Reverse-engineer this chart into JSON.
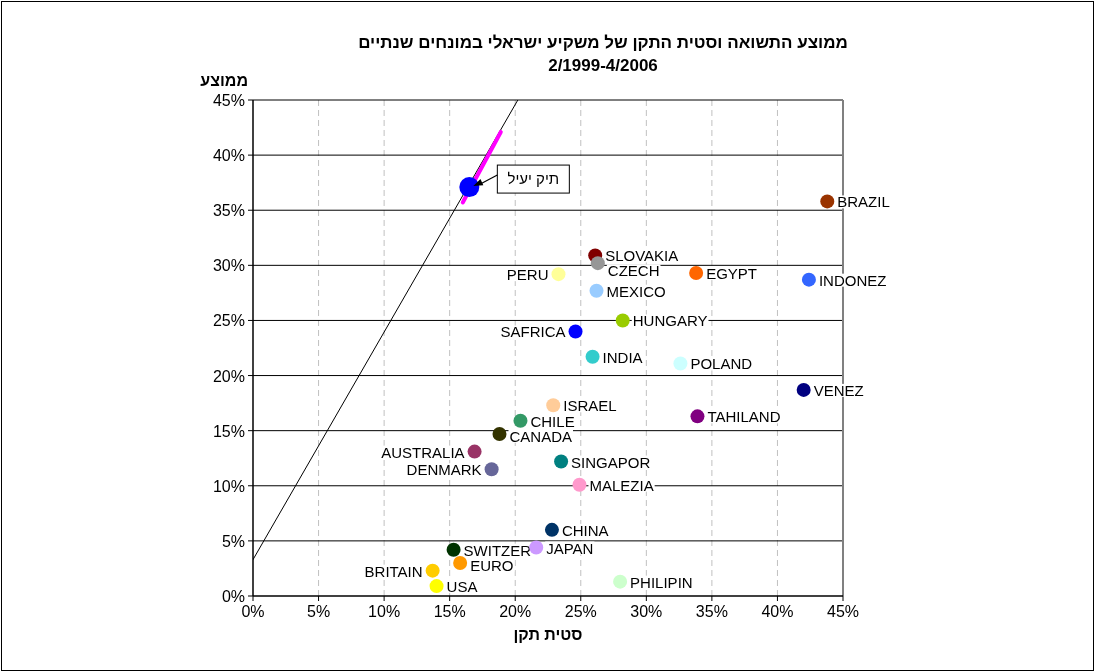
{
  "chart_data": {
    "type": "scatter",
    "title": "ממוצע התשואה וסטית התקן של משקיע ישראלי במונחים שנתיים",
    "subtitle": "2/1999-4/2006",
    "xlabel": "סטית תקן",
    "ylabel": "ממוצע",
    "marker": "circle",
    "grid": true,
    "xlim": [
      0,
      45
    ],
    "ylim": [
      0,
      45
    ],
    "xticks": [
      {
        "value": 0,
        "label": "0%"
      },
      {
        "value": 5,
        "label": "5%"
      },
      {
        "value": 10,
        "label": "10%"
      },
      {
        "value": 15,
        "label": "15%"
      },
      {
        "value": 20,
        "label": "20%"
      },
      {
        "value": 25,
        "label": "25%"
      },
      {
        "value": 30,
        "label": "30%"
      },
      {
        "value": 35,
        "label": "35%"
      },
      {
        "value": 40,
        "label": "40%"
      },
      {
        "value": 45,
        "label": "45%"
      }
    ],
    "yticks": [
      {
        "value": 0,
        "label": "0%"
      },
      {
        "value": 5,
        "label": "5%"
      },
      {
        "value": 10,
        "label": "10%"
      },
      {
        "value": 15,
        "label": "15%"
      },
      {
        "value": 20,
        "label": "20%"
      },
      {
        "value": 25,
        "label": "25%"
      },
      {
        "value": 30,
        "label": "30%"
      },
      {
        "value": 35,
        "label": "35%"
      },
      {
        "value": 40,
        "label": "40%"
      },
      {
        "value": 45,
        "label": "45%"
      }
    ],
    "annotations": [
      {
        "text": "תיק יעיל",
        "x": 16.5,
        "y": 37.1
      }
    ],
    "series": [
      {
        "type": "line",
        "marker": "none",
        "color": "#000000",
        "x": [
          0,
          20.2
        ],
        "values": [
          3.3,
          45
        ]
      },
      {
        "type": "line",
        "marker": "none",
        "color": "#ff00ff",
        "x": [
          16.0,
          18.9
        ],
        "values": [
          35.7,
          42.1
        ]
      },
      {
        "type": "scatter",
        "color": "#0000ff",
        "x": [
          16.5
        ],
        "values": [
          37.1
        ]
      },
      {
        "name": "BRAZIL",
        "color": "#993300",
        "x": [
          43.8
        ],
        "values": [
          35.8
        ]
      },
      {
        "name": "SLOVAKIA",
        "color": "#800000",
        "x": [
          26.1
        ],
        "values": [
          30.9
        ]
      },
      {
        "name": "CZECH",
        "color": "#969696",
        "x": [
          26.3
        ],
        "values": [
          30.2
        ]
      },
      {
        "name": "EGYPT",
        "color": "#ff6600",
        "x": [
          33.8
        ],
        "values": [
          29.3
        ]
      },
      {
        "name": "INDONEZ",
        "color": "#3366ff",
        "x": [
          42.4
        ],
        "values": [
          28.7
        ]
      },
      {
        "name": "PERU",
        "color": "#ffff99",
        "x": [
          23.3
        ],
        "values": [
          29.2
        ]
      },
      {
        "name": "MEXICO",
        "color": "#99ccff",
        "x": [
          26.2
        ],
        "values": [
          27.7
        ]
      },
      {
        "name": "HUNGARY",
        "color": "#99cc00",
        "x": [
          28.2
        ],
        "values": [
          25.0
        ]
      },
      {
        "name": "SAFRICA",
        "color": "#0000ff",
        "x": [
          24.6
        ],
        "values": [
          24.0
        ]
      },
      {
        "name": "INDIA",
        "color": "#33cccc",
        "x": [
          25.9
        ],
        "values": [
          21.7
        ]
      },
      {
        "name": "POLAND",
        "color": "#ccffff",
        "x": [
          32.6
        ],
        "values": [
          21.1
        ]
      },
      {
        "name": "VENEZ",
        "color": "#000080",
        "x": [
          42.0
        ],
        "values": [
          18.7
        ]
      },
      {
        "name": "ISRAEL",
        "color": "#ffcc99",
        "x": [
          22.9
        ],
        "values": [
          17.3
        ]
      },
      {
        "name": "TAHILAND",
        "color": "#800080",
        "x": [
          33.9
        ],
        "values": [
          16.3
        ]
      },
      {
        "name": "CHILE",
        "color": "#339966",
        "x": [
          20.4
        ],
        "values": [
          15.9
        ]
      },
      {
        "name": "CANADA",
        "color": "#333300",
        "x": [
          18.8
        ],
        "values": [
          14.7
        ]
      },
      {
        "name": "AUSTRALIA",
        "color": "#993366",
        "x": [
          16.9
        ],
        "values": [
          13.1
        ]
      },
      {
        "name": "SINGAPOR",
        "color": "#008080",
        "x": [
          23.5
        ],
        "values": [
          12.2
        ]
      },
      {
        "name": "DENMARK",
        "color": "#666699",
        "x": [
          18.2
        ],
        "values": [
          11.5
        ]
      },
      {
        "name": "MALEZIA",
        "color": "#ff99cc",
        "x": [
          24.9
        ],
        "values": [
          10.1
        ]
      },
      {
        "name": "CHINA",
        "color": "#003366",
        "x": [
          22.8
        ],
        "values": [
          6.0
        ]
      },
      {
        "name": "JAPAN",
        "color": "#cc99ff",
        "x": [
          21.6
        ],
        "values": [
          4.4
        ]
      },
      {
        "name": "SWITZER",
        "color": "#003300",
        "x": [
          15.3
        ],
        "values": [
          4.2
        ]
      },
      {
        "name": "EURO",
        "color": "#ff9900",
        "x": [
          15.8
        ],
        "values": [
          3.0
        ]
      },
      {
        "name": "BRITAIN",
        "color": "#ffcc00",
        "x": [
          13.7
        ],
        "values": [
          2.3
        ]
      },
      {
        "name": "USA",
        "color": "#ffff00",
        "x": [
          14.0
        ],
        "values": [
          0.9
        ]
      },
      {
        "name": "PHILIPIN",
        "color": "#ccffcc",
        "x": [
          28.0
        ],
        "values": [
          1.3
        ]
      }
    ]
  }
}
